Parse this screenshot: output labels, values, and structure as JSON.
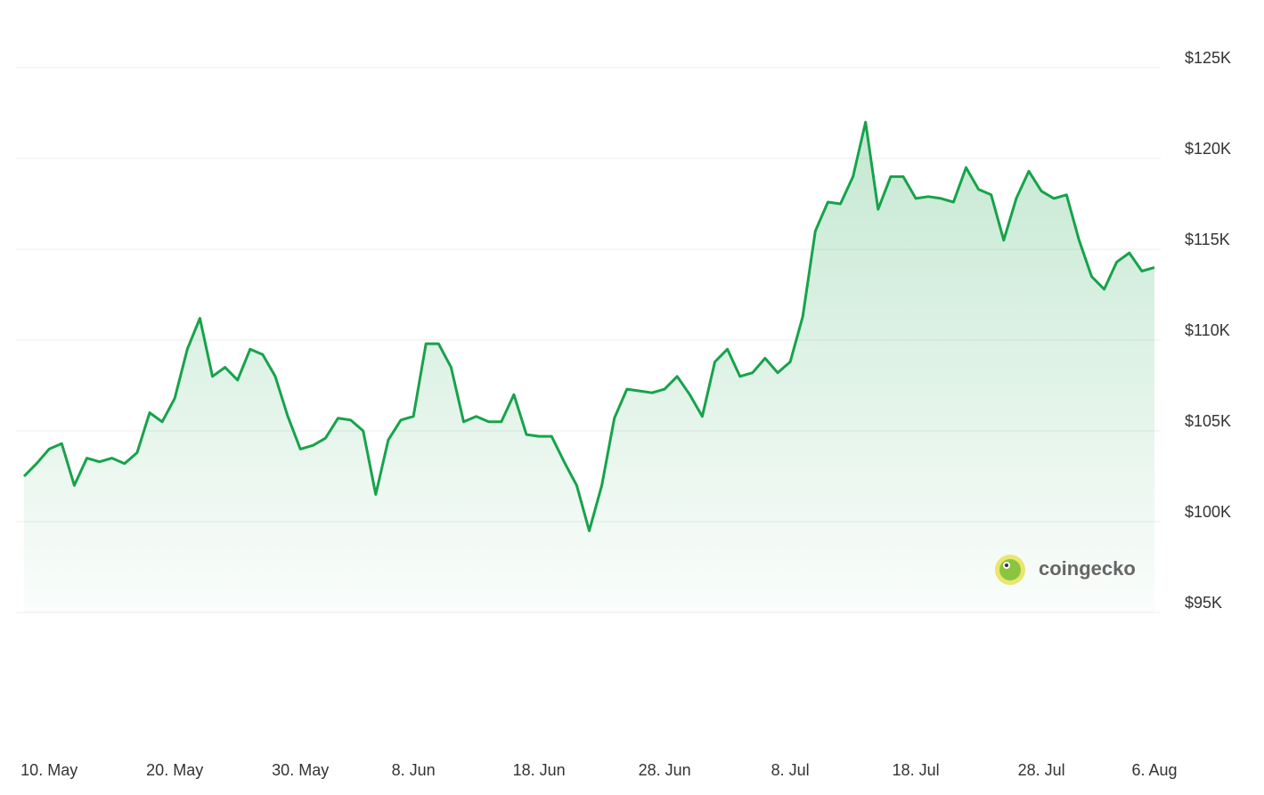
{
  "chart_data": {
    "type": "line",
    "categories": [
      "8. May",
      "9. May",
      "10. May",
      "11. May",
      "12. May",
      "13. May",
      "14. May",
      "15. May",
      "16. May",
      "17. May",
      "18. May",
      "19. May",
      "20. May",
      "21. May",
      "22. May",
      "23. May",
      "24. May",
      "25. May",
      "26. May",
      "27. May",
      "28. May",
      "29. May",
      "30. May",
      "31. May",
      "1. Jun",
      "2. Jun",
      "3. Jun",
      "4. Jun",
      "5. Jun",
      "6. Jun",
      "7. Jun",
      "8. Jun",
      "9. Jun",
      "10. Jun",
      "11. Jun",
      "12. Jun",
      "13. Jun",
      "14. Jun",
      "15. Jun",
      "16. Jun",
      "17. Jun",
      "18. Jun",
      "19. Jun",
      "20. Jun",
      "21. Jun",
      "22. Jun",
      "23. Jun",
      "24. Jun",
      "25. Jun",
      "26. Jun",
      "27. Jun",
      "28. Jun",
      "29. Jun",
      "30. Jun",
      "1. Jul",
      "2. Jul",
      "3. Jul",
      "4. Jul",
      "5. Jul",
      "6. Jul",
      "7. Jul",
      "8. Jul",
      "9. Jul",
      "10. Jul",
      "11. Jul",
      "12. Jul",
      "13. Jul",
      "14. Jul",
      "15. Jul",
      "16. Jul",
      "17. Jul",
      "18. Jul",
      "19. Jul",
      "20. Jul",
      "21. Jul",
      "22. Jul",
      "23. Jul",
      "24. Jul",
      "25. Jul",
      "26. Jul",
      "27. Jul",
      "28. Jul",
      "29. Jul",
      "30. Jul",
      "31. Jul",
      "1. Aug",
      "2. Aug",
      "3. Aug",
      "4. Aug",
      "5. Aug",
      "6. Aug"
    ],
    "values": [
      102500,
      103200,
      104000,
      104300,
      102000,
      103500,
      103300,
      103500,
      103200,
      103800,
      106000,
      105500,
      106800,
      109500,
      111200,
      108000,
      108500,
      107800,
      109500,
      109200,
      108000,
      105800,
      104000,
      104200,
      104600,
      105700,
      105600,
      105000,
      101500,
      104500,
      105600,
      105800,
      109800,
      109800,
      108500,
      105500,
      105800,
      105500,
      105500,
      107000,
      104800,
      104700,
      104700,
      103300,
      102000,
      99500,
      102000,
      105700,
      107300,
      107200,
      107100,
      107300,
      108000,
      107000,
      105800,
      108800,
      109500,
      108000,
      108200,
      109000,
      108200,
      108800,
      111300,
      116000,
      117600,
      117500,
      119000,
      122000,
      117200,
      119000,
      119000,
      117800,
      117900,
      117800,
      117600,
      119500,
      118300,
      118000,
      115500,
      117800,
      119300,
      118200,
      117800,
      118000,
      115500,
      113500,
      112800,
      114300,
      114800,
      113800,
      114000
    ],
    "color": "#16a34a",
    "ylim": [
      95000,
      125000
    ],
    "yticks": [
      {
        "value": 95000,
        "label": "$95K"
      },
      {
        "value": 100000,
        "label": "$100K"
      },
      {
        "value": 105000,
        "label": "$105K"
      },
      {
        "value": 110000,
        "label": "$110K"
      },
      {
        "value": 115000,
        "label": "$115K"
      },
      {
        "value": 120000,
        "label": "$120K"
      },
      {
        "value": 125000,
        "label": "$125K"
      }
    ],
    "xticks": [
      "10. May",
      "20. May",
      "30. May",
      "8. Jun",
      "18. Jun",
      "28. Jun",
      "8. Jul",
      "18. Jul",
      "28. Jul",
      "6. Aug"
    ],
    "grid": true,
    "watermark": "coingecko"
  }
}
